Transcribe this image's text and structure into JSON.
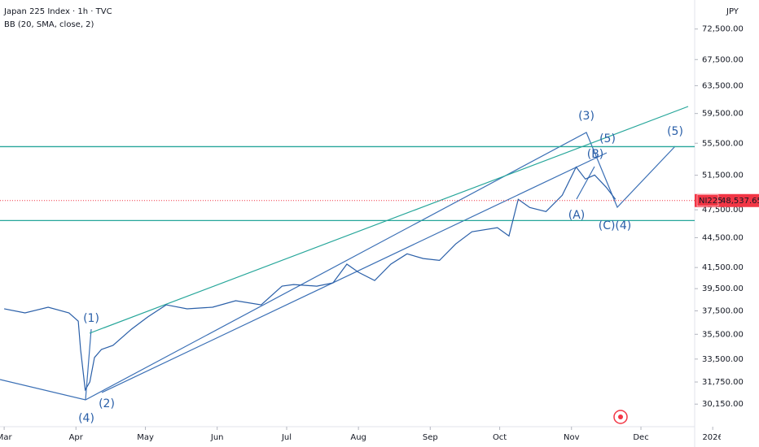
{
  "chart_data": {
    "type": "line",
    "title": "Japan 225 Index · 1h · TVC",
    "indicator": "BB (20, SMA, close, 2)",
    "currency": "JPY",
    "symbol": "NI225",
    "last_price": {
      "value": 48537.65,
      "label": "48,537.65"
    },
    "log_scale": true,
    "x": [
      0,
      9,
      19,
      28,
      32,
      33,
      35,
      37,
      39,
      42,
      47,
      55,
      62,
      70,
      79,
      90,
      100,
      111,
      120,
      125,
      135,
      142,
      148,
      153,
      160,
      167,
      174,
      181,
      188,
      195,
      202,
      213,
      218,
      222,
      227,
      234,
      241,
      247,
      251,
      255,
      260,
      264
    ],
    "series": [
      {
        "color": "#2a5fa8",
        "values": [
          37680,
          37320,
          37820,
          37320,
          36610,
          34260,
          31170,
          31760,
          33620,
          34260,
          34590,
          35930,
          36970,
          38030,
          37680,
          37820,
          38400,
          38030,
          39730,
          39880,
          39730,
          40030,
          41830,
          41040,
          40260,
          41830,
          42850,
          42380,
          42200,
          43850,
          45120,
          45550,
          44680,
          48680,
          47750,
          47300,
          49140,
          52500,
          51040,
          51520,
          50070,
          48680
        ]
      }
    ],
    "hlines": [
      {
        "value": 55060,
        "color": "#26a69a"
      },
      {
        "value": 46320,
        "color": "#26a69a"
      }
    ],
    "wave_labels": [
      "(1)",
      "(2)",
      "(3)",
      "(4)",
      "(5)",
      "(5)",
      "(B)",
      "(A)",
      "(C)(4)"
    ],
    "xlim": [
      -1.8,
      298.2
    ],
    "xticks": [
      {
        "value": 0,
        "label": "Mar"
      },
      {
        "value": 31,
        "label": "Apr"
      },
      {
        "value": 61,
        "label": "May"
      },
      {
        "value": 92,
        "label": "Jun"
      },
      {
        "value": 122,
        "label": "Jul"
      },
      {
        "value": 153,
        "label": "Aug"
      },
      {
        "value": 184,
        "label": "Sep"
      },
      {
        "value": 214,
        "label": "Oct"
      },
      {
        "value": 245,
        "label": "Nov"
      },
      {
        "value": 275,
        "label": "Dec"
      },
      {
        "value": 306,
        "label": "2026"
      }
    ],
    "ylim": [
      28600,
      77590
    ],
    "yticks": [
      {
        "value": 72500,
        "label": "72,500.00"
      },
      {
        "value": 67500,
        "label": "67,500.00"
      },
      {
        "value": 63500,
        "label": "63,500.00"
      },
      {
        "value": 59500,
        "label": "59,500.00"
      },
      {
        "value": 55500,
        "label": "55,500.00"
      },
      {
        "value": 51500,
        "label": "51,500.00"
      },
      {
        "value": 47500,
        "label": "47,500.00"
      },
      {
        "value": 44500,
        "label": "44,500.00"
      },
      {
        "value": 41500,
        "label": "41,500.00"
      },
      {
        "value": 39500,
        "label": "39,500.00"
      },
      {
        "value": 37500,
        "label": "37,500.00"
      },
      {
        "value": 35500,
        "label": "35,500.00"
      },
      {
        "value": 33500,
        "label": "33,500.00"
      },
      {
        "value": 31750,
        "label": "31,750.00"
      },
      {
        "value": 30150,
        "label": "30,150.00"
      }
    ]
  }
}
